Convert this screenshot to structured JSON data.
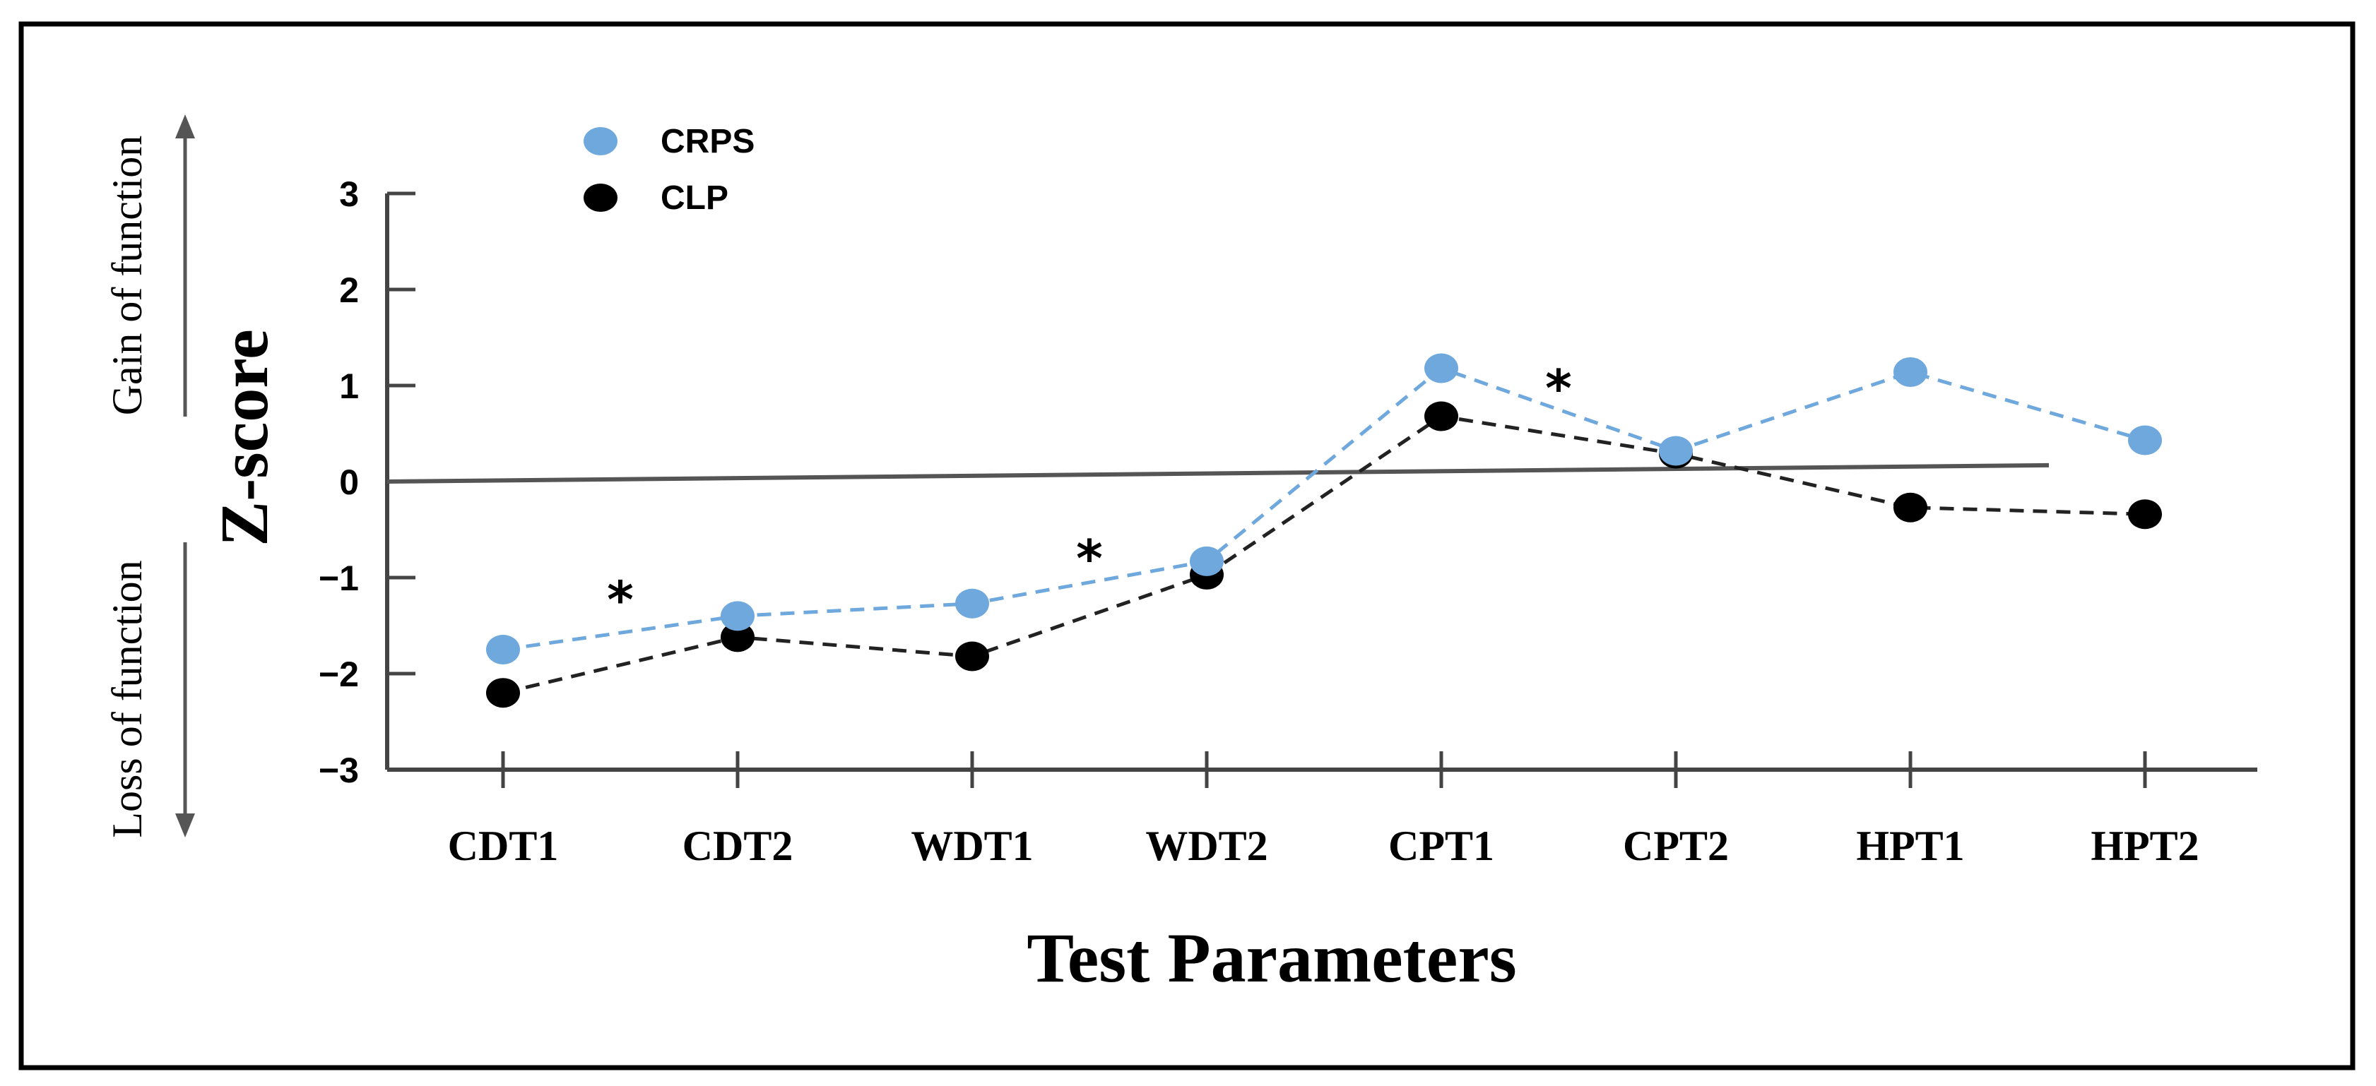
{
  "chart_data": {
    "type": "line",
    "categories": [
      "CDT1",
      "CDT2",
      "WDT1",
      "WDT2",
      "CPT1",
      "CPT2",
      "HPT1",
      "HPT2"
    ],
    "series": [
      {
        "name": "CRPS",
        "color": "#6fa8dc",
        "values": [
          -1.75,
          -1.4,
          -1.27,
          -0.83,
          1.18,
          0.32,
          1.14,
          0.43
        ]
      },
      {
        "name": "CLP",
        "color": "#000000",
        "values": [
          -2.2,
          -1.62,
          -1.82,
          -0.97,
          0.68,
          0.29,
          -0.27,
          -0.34
        ]
      }
    ],
    "baseline": {
      "from_value": 0.0,
      "to_value": 0.17
    },
    "significance_marker": "*",
    "significance_marks": [
      {
        "between": [
          "CDT1",
          "CDT2"
        ],
        "y": -1.15
      },
      {
        "between": [
          "WDT1",
          "WDT2"
        ],
        "y": -0.72
      },
      {
        "between": [
          "CPT1",
          "CPT2"
        ],
        "y": 1.05
      }
    ],
    "title": "",
    "xlabel": "Test Parameters",
    "ylabel": "Z-score",
    "ylim": [
      -3,
      3
    ],
    "yticks": [
      "3",
      "2",
      "1",
      "0",
      "−1",
      "−2",
      "−3"
    ],
    "upper_side_label": "Gain of function",
    "lower_side_label": "Loss of function",
    "grid": false,
    "legend_placement": "top-left"
  }
}
